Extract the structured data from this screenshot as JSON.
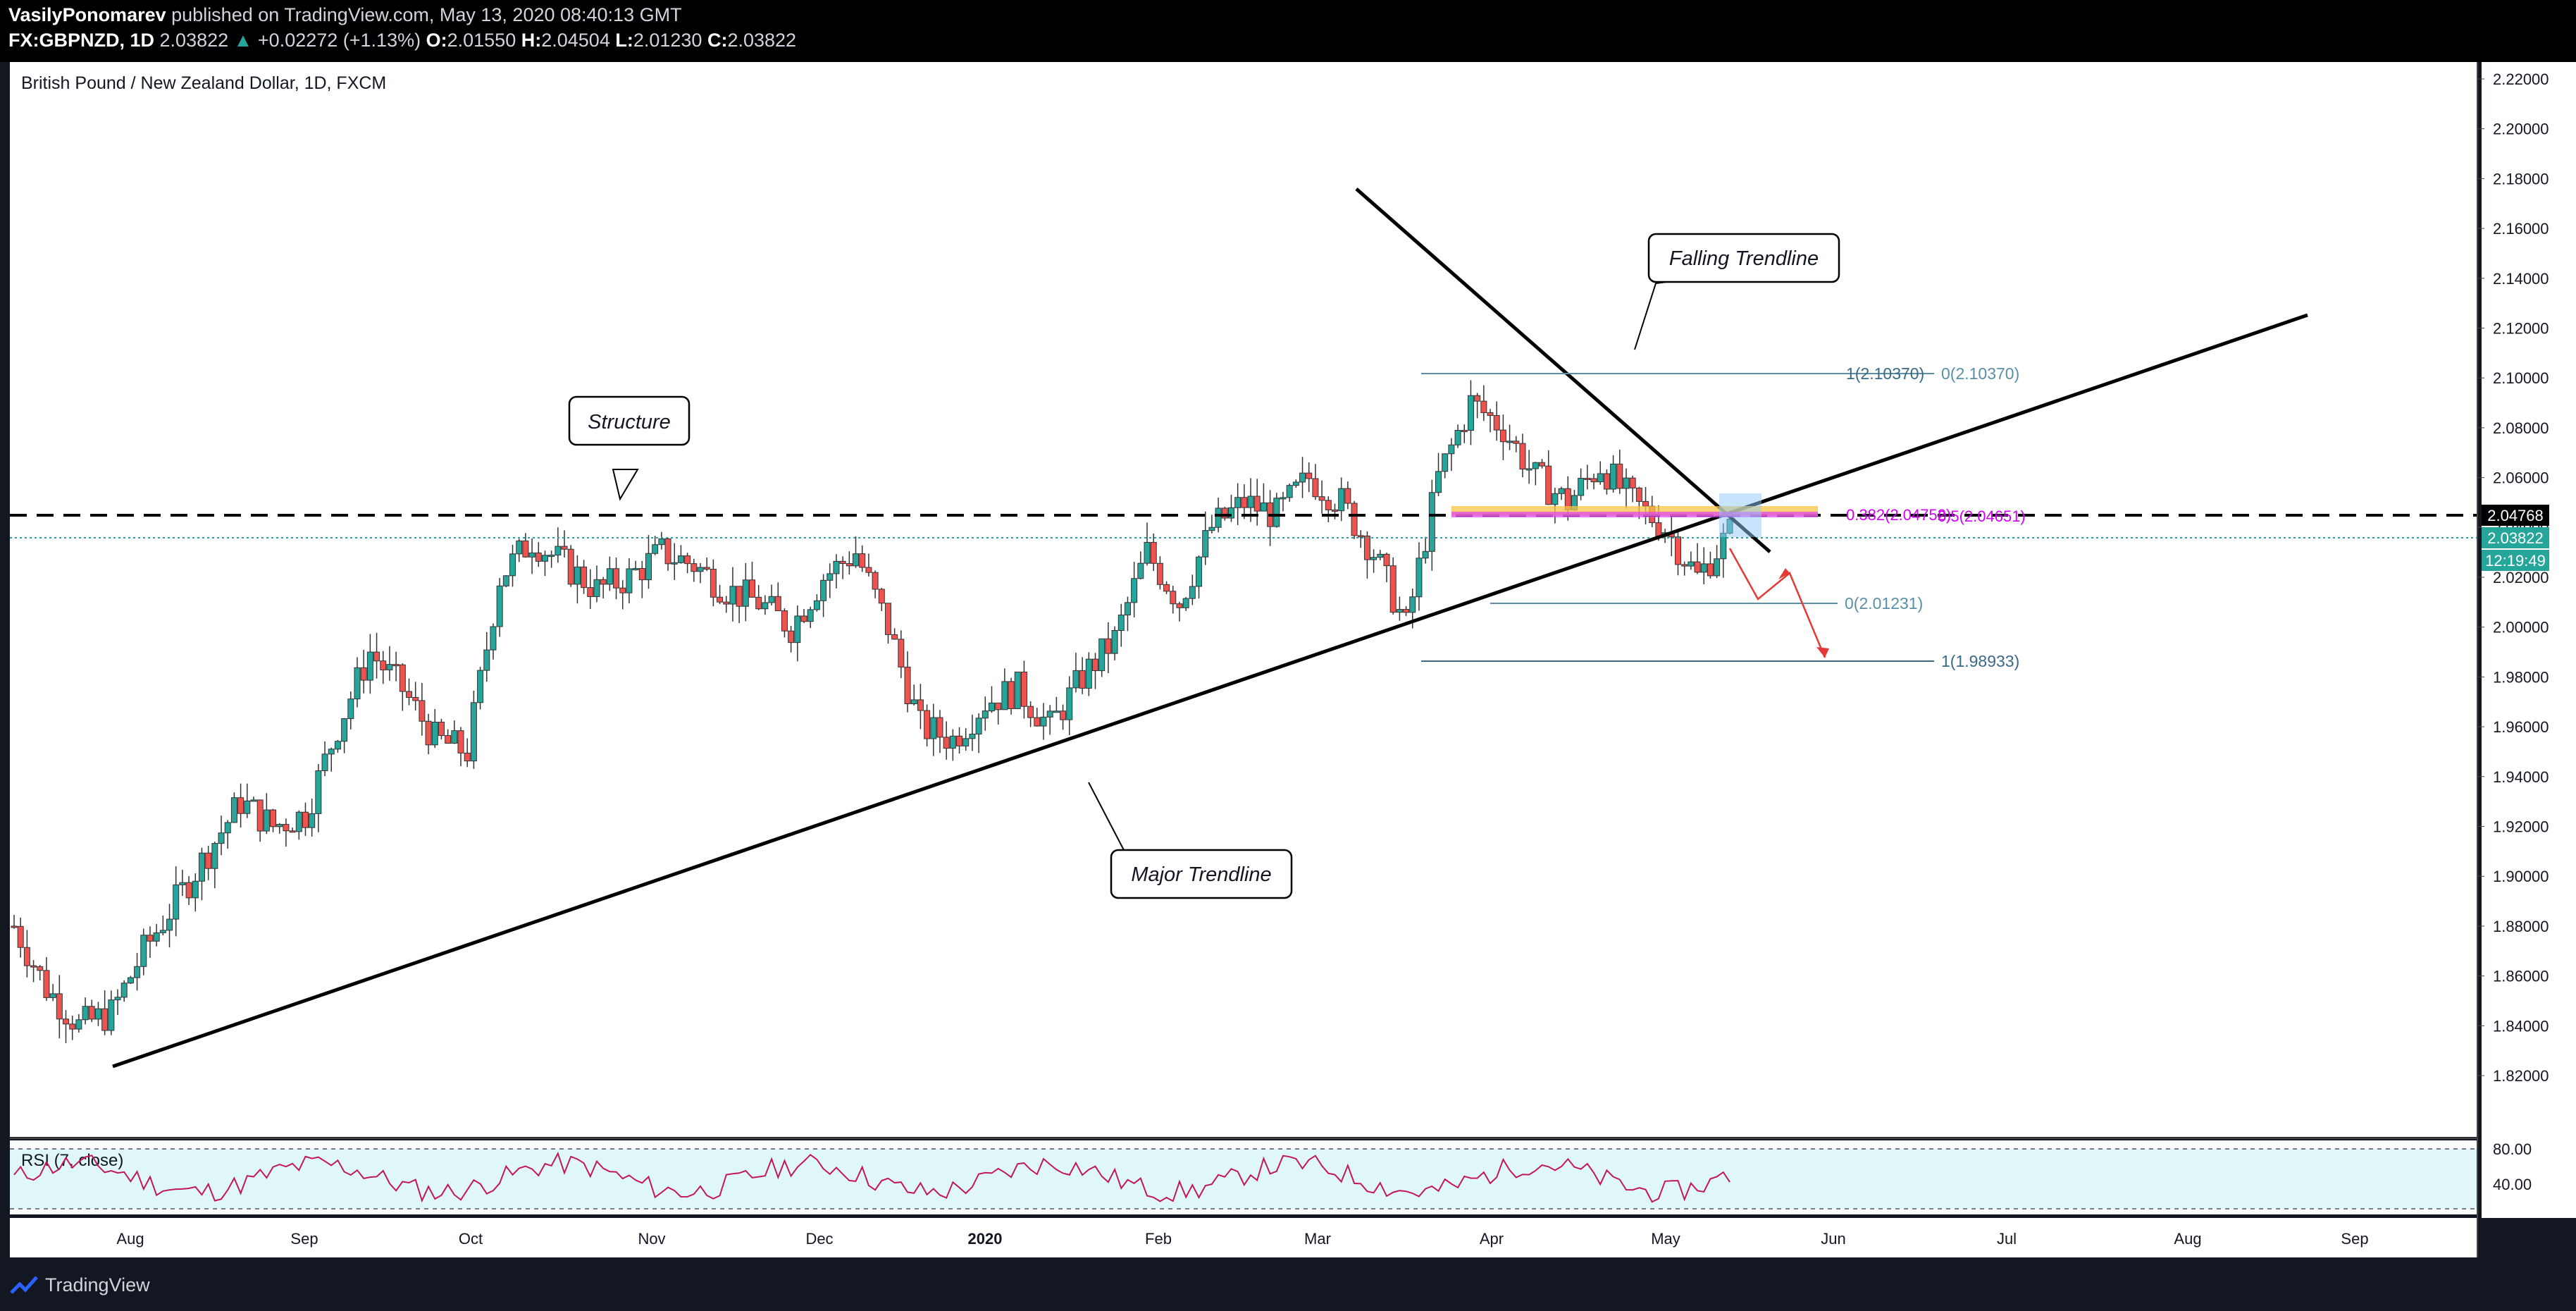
{
  "header": {
    "author": "VasilyPonomarev",
    "published": "published on TradingView.com, May 13, 2020 08:40:13 GMT",
    "symbol": "FX:GBPNZD, 1D",
    "last": "2.03822",
    "change": "+0.02272 (+1.13%)",
    "open_label": "O:",
    "open": "2.01550",
    "high_label": "H:",
    "high": "2.04504",
    "low_label": "L:",
    "low": "2.01230",
    "close_label": "C:",
    "close": "2.03822"
  },
  "chart": {
    "title": "British Pound / New Zealand Dollar, 1D, FXCM",
    "price_ticks": [
      "2.22000",
      "2.20000",
      "2.18000",
      "2.16000",
      "2.14000",
      "2.12000",
      "2.10000",
      "2.08000",
      "2.06000",
      "2.04000",
      "2.02000",
      "2.00000",
      "1.98000",
      "1.96000",
      "1.94000",
      "1.92000",
      "1.90000",
      "1.88000",
      "1.86000",
      "1.84000",
      "1.82000"
    ],
    "time_ticks": [
      "Aug",
      "Sep",
      "Oct",
      "Nov",
      "Dec",
      "2020",
      "Feb",
      "Mar",
      "Apr",
      "May",
      "Jun",
      "Jul",
      "Aug",
      "Sep"
    ],
    "price_badges": {
      "resistance": "2.04768",
      "last": "2.03822",
      "countdown": "12:19:49"
    },
    "annotations": {
      "structure": "Structure",
      "falling": "Falling Trendline",
      "major": "Major Trendline"
    },
    "fib_labels": {
      "top_a": "1(2.10370)",
      "top_b": "0(2.10370)",
      "mid": "0.382(2.04752)",
      "mid_b": "0.5(2.04651)",
      "low_a": "0(2.01231)",
      "low_b": "1(1.98933)"
    },
    "rsi": {
      "label": "RSI (7, close)",
      "ticks": [
        "80.00",
        "40.00"
      ]
    },
    "colors": {
      "up": "#26a69a",
      "down": "#ef5350",
      "bg": "#ffffff"
    }
  },
  "chart_data": {
    "type": "candlestick",
    "title": "British Pound / New Zealand Dollar, 1D, FXCM",
    "ylim": [
      1.81,
      2.225
    ],
    "resistance": 2.04768,
    "last": 2.03822,
    "closes_weekly": [
      1.88,
      1.855,
      1.84,
      1.845,
      1.87,
      1.89,
      1.91,
      1.93,
      1.92,
      1.925,
      1.96,
      1.99,
      1.975,
      1.955,
      1.95,
      2.02,
      2.035,
      2.025,
      2.015,
      2.02,
      2.03,
      2.025,
      2.015,
      2.01,
      2.0,
      2.02,
      2.03,
      2.0,
      1.96,
      1.955,
      1.97,
      1.975,
      1.96,
      1.98,
      1.995,
      2.03,
      2.01,
      2.04,
      2.05,
      2.045,
      2.06,
      2.05,
      2.03,
      2.0,
      2.06,
      2.09,
      2.08,
      2.06,
      2.05,
      2.065,
      2.05,
      2.04,
      2.02,
      2.038
    ]
  }
}
